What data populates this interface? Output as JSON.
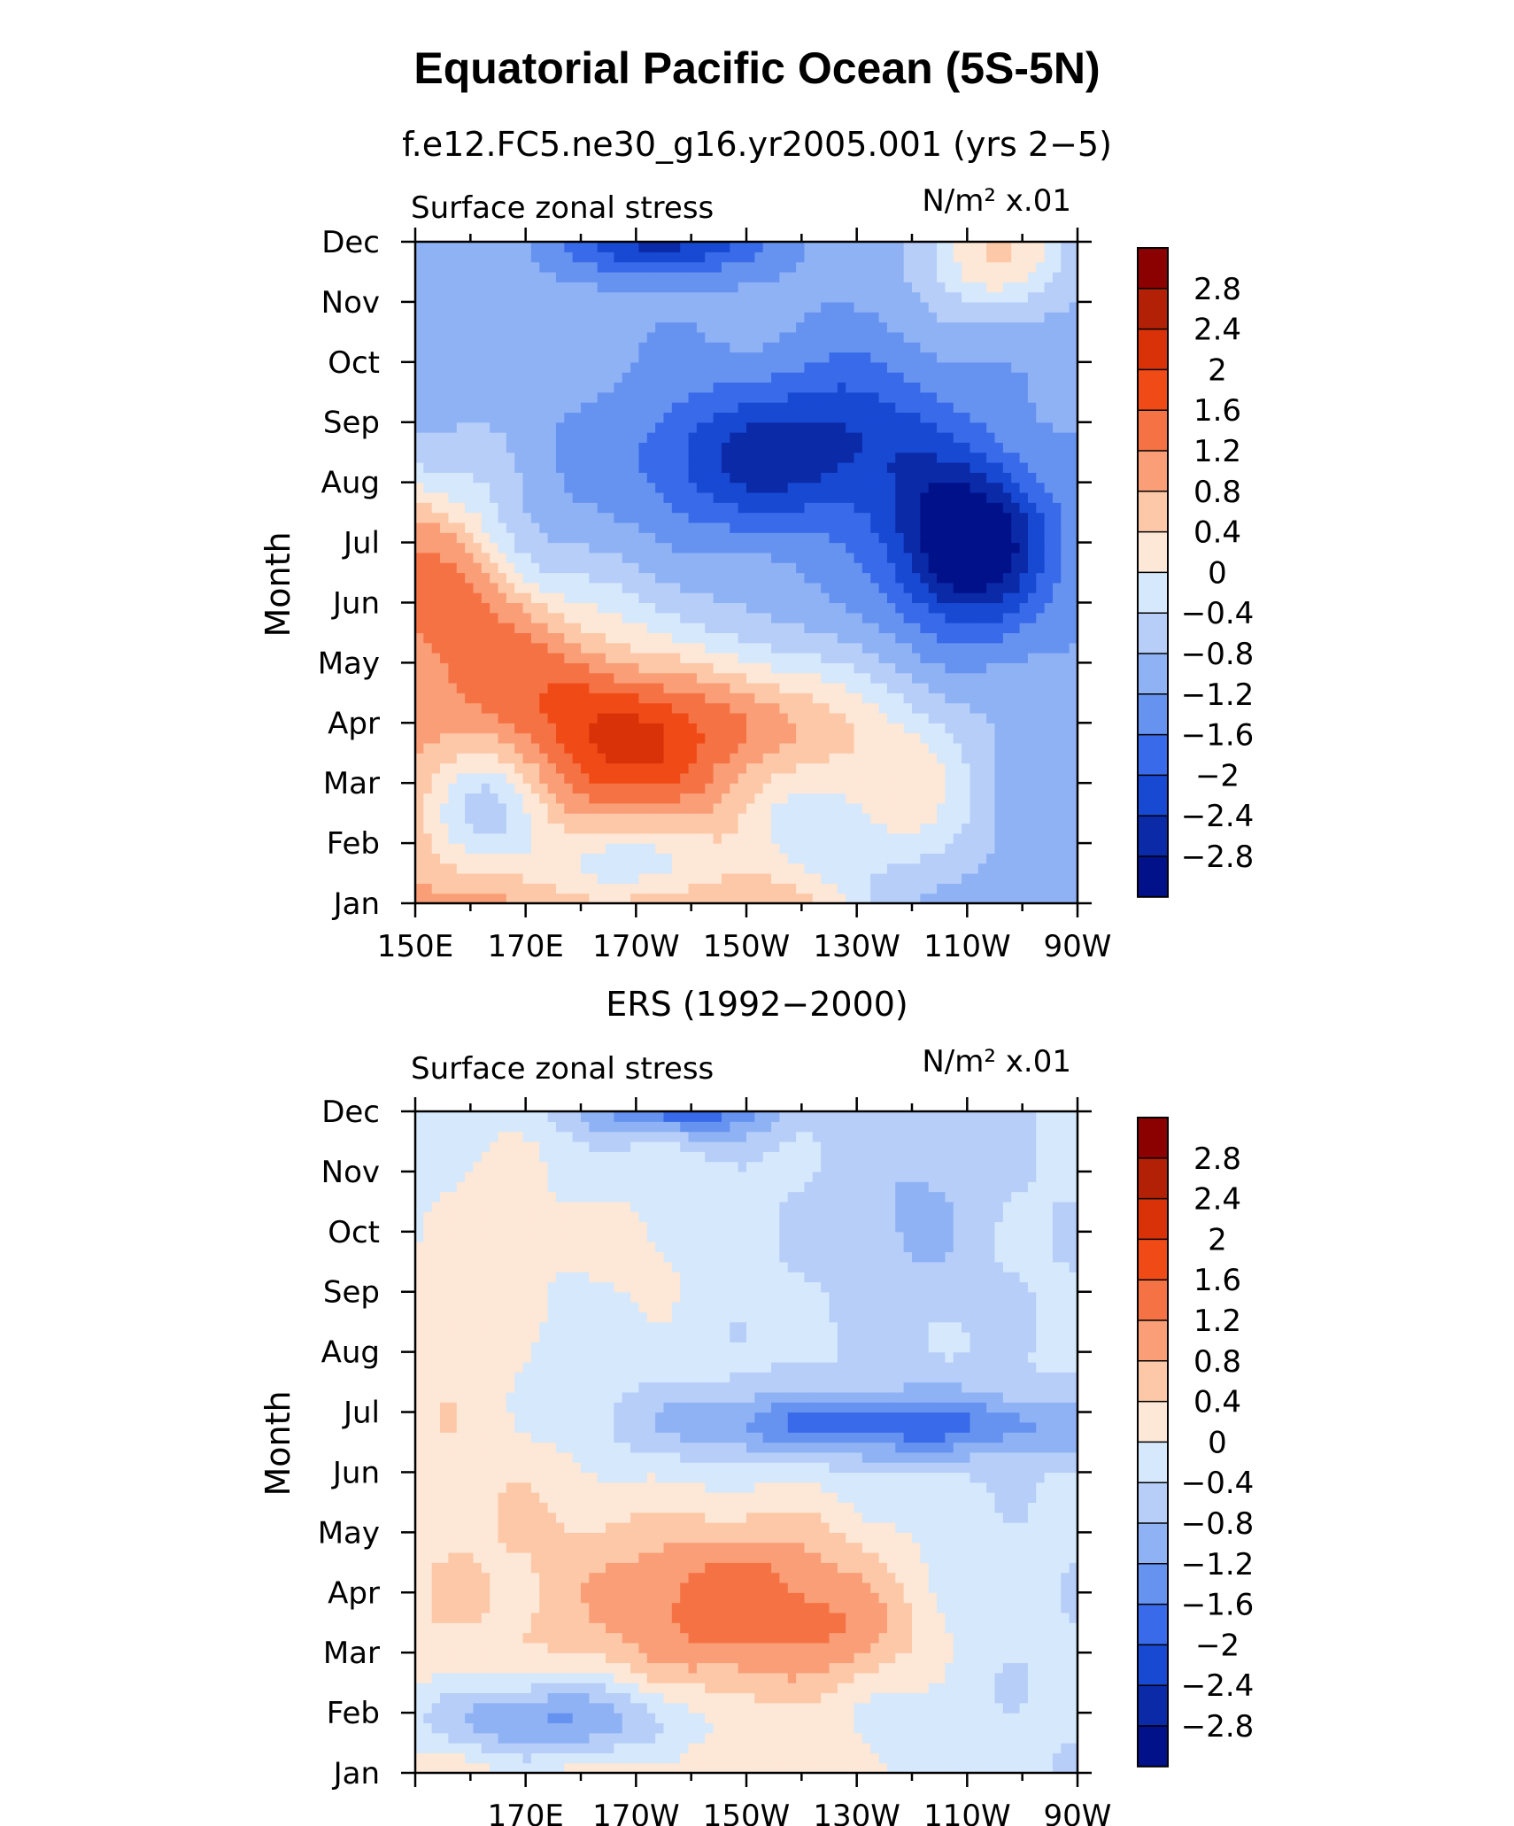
{
  "title": "Equatorial Pacific Ocean (5S-5N)",
  "colorbar_levels": [
    "2.8",
    "2.4",
    "2",
    "1.6",
    "1.2",
    "0.8",
    "0.4",
    "0",
    "−0.4",
    "−0.8",
    "−1.2",
    "−1.6",
    "−2",
    "−2.4",
    "−2.8"
  ],
  "colorbar_colors": [
    "#8b0000",
    "#b22106",
    "#d93209",
    "#f04b16",
    "#f57245",
    "#f99e76",
    "#fcc8a8",
    "#fde7d6",
    "#d6e8fb",
    "#b6cef8",
    "#8fb2f5",
    "#6693f0",
    "#386ae9",
    "#1849d3",
    "#0a2aa8",
    "#01118a"
  ],
  "chart_data": [
    {
      "type": "heatmap",
      "subtitle": "f.e12.FC5.ne30_g16.yr2005.001 (yrs 2−5)",
      "left_label": "Surface zonal stress",
      "right_label": "N/m² x.01",
      "ylabel": "Month",
      "x_ticks": [
        "150E",
        "170E",
        "170W",
        "150W",
        "130W",
        "110W",
        "90W"
      ],
      "y_ticks": [
        "Jan",
        "Feb",
        "Mar",
        "Apr",
        "May",
        "Jun",
        "Jul",
        "Aug",
        "Sep",
        "Oct",
        "Nov",
        "Dec"
      ],
      "x_range_deg_lon": [
        150,
        270
      ],
      "colorbar": "right",
      "features": [
        {
          "lon": 200,
          "month": 3.0,
          "value": 3.0
        },
        {
          "lon": 225,
          "month": 2.7,
          "value": 2.4
        },
        {
          "lon": 180,
          "month": 4.5,
          "value": 1.6
        },
        {
          "lon": 240,
          "month": 1.0,
          "value": 1.6
        },
        {
          "lon": 248,
          "month": 6.2,
          "value": -3.0
        },
        {
          "lon": 210,
          "month": 7.3,
          "value": -2.2
        },
        {
          "lon": 200,
          "month": 11.0,
          "value": -2.0
        },
        {
          "lon": 160,
          "month": 1.7,
          "value": -1.2
        },
        {
          "lon": 185,
          "month": 1.0,
          "value": -2.0
        },
        {
          "lon": 255,
          "month": 10.5,
          "value": 1.6
        },
        {
          "lon": 160,
          "month": 6.5,
          "value": 0.8
        }
      ]
    },
    {
      "type": "heatmap",
      "subtitle": "ERS (1992−2000)",
      "left_label": "Surface zonal stress",
      "right_label": "N/m² x.01",
      "ylabel": "Month",
      "x_ticks": [
        "170E",
        "170W",
        "150W",
        "130W",
        "110W",
        "90W"
      ],
      "y_ticks": [
        "Jan",
        "Feb",
        "Mar",
        "Apr",
        "May",
        "Jun",
        "Jul",
        "Aug",
        "Sep",
        "Oct",
        "Nov",
        "Dec"
      ],
      "x_range_deg_lon": [
        150,
        270
      ],
      "colorbar": "right",
      "features": [
        {
          "lon": 215,
          "month": 2.8,
          "value": 1.6
        },
        {
          "lon": 200,
          "month": 3.5,
          "value": 1.4
        },
        {
          "lon": 230,
          "month": 5.8,
          "value": -1.6
        },
        {
          "lon": 200,
          "month": 11.0,
          "value": -2.0
        },
        {
          "lon": 172,
          "month": 1.0,
          "value": -1.8
        },
        {
          "lon": 240,
          "month": 9.5,
          "value": -0.6
        },
        {
          "lon": 165,
          "month": 9.0,
          "value": 0.6
        },
        {
          "lon": 195,
          "month": 8.5,
          "value": 0.6
        }
      ]
    }
  ]
}
